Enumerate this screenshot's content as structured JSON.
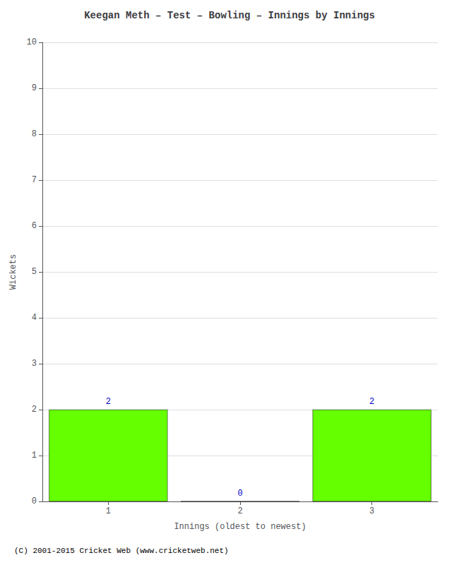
{
  "chart_data": {
    "type": "bar",
    "title": "Keegan Meth – Test – Bowling – Innings by Innings",
    "xlabel": "Innings (oldest to newest)",
    "ylabel": "Wickets",
    "footer": "(C) 2001-2015 Cricket Web (www.cricketweb.net)",
    "x": [
      1,
      2,
      3
    ],
    "values": [
      2,
      0,
      2
    ],
    "color": "#66ff00",
    "xlim": [
      0.5,
      3.5
    ],
    "xticks": [
      1,
      2,
      3
    ],
    "ylim": [
      0,
      10
    ],
    "yticks": [
      0,
      1,
      2,
      3,
      4,
      5,
      6,
      7,
      8,
      9,
      10
    ],
    "grid": true,
    "data_labels": true
  }
}
